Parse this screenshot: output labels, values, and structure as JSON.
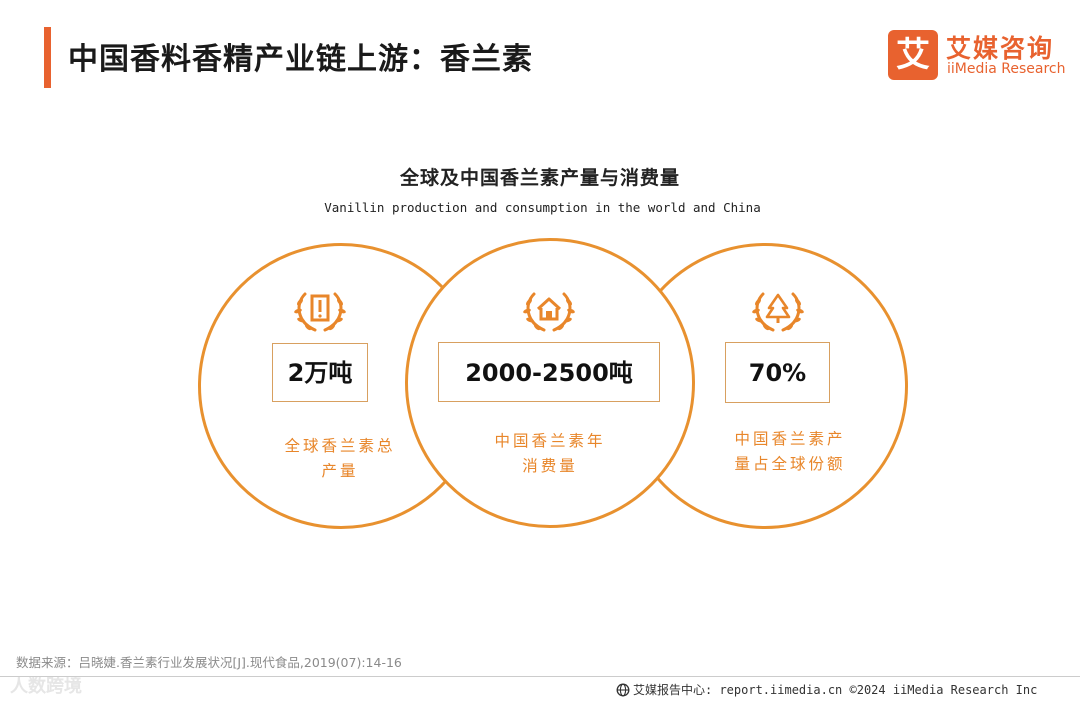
{
  "header": {
    "title": "中国香料香精产业链上游：香兰素",
    "logo_icon_text": "艾",
    "logo_cn": "艾媒咨询",
    "logo_en": "iiMedia Research"
  },
  "chart": {
    "title_cn": "全球及中国香兰素产量与消费量",
    "title_en": "Vanillin production and consumption in the world and China"
  },
  "cards": [
    {
      "icon": "laurel-document-icon",
      "value": "2万吨",
      "label_line1": "全球香兰素总",
      "label_line2": "产量"
    },
    {
      "icon": "laurel-house-icon",
      "value": "2000-2500吨",
      "label_line1": "中国香兰素年",
      "label_line2": "消费量"
    },
    {
      "icon": "laurel-tree-icon",
      "value": "70%",
      "label_line1": "中国香兰素产",
      "label_line2": "量占全球份额"
    }
  ],
  "source": "数据来源：吕晓婕.香兰素行业发展状况[J].现代食品,2019(07):14-16",
  "watermark": "人数跨境",
  "footer": {
    "text": "艾媒报告中心: report.iimedia.cn  ©2024  iiMedia Research  Inc"
  },
  "colors": {
    "accent": "#e8622f",
    "circle": "#e8912f",
    "label": "#e8862a"
  }
}
